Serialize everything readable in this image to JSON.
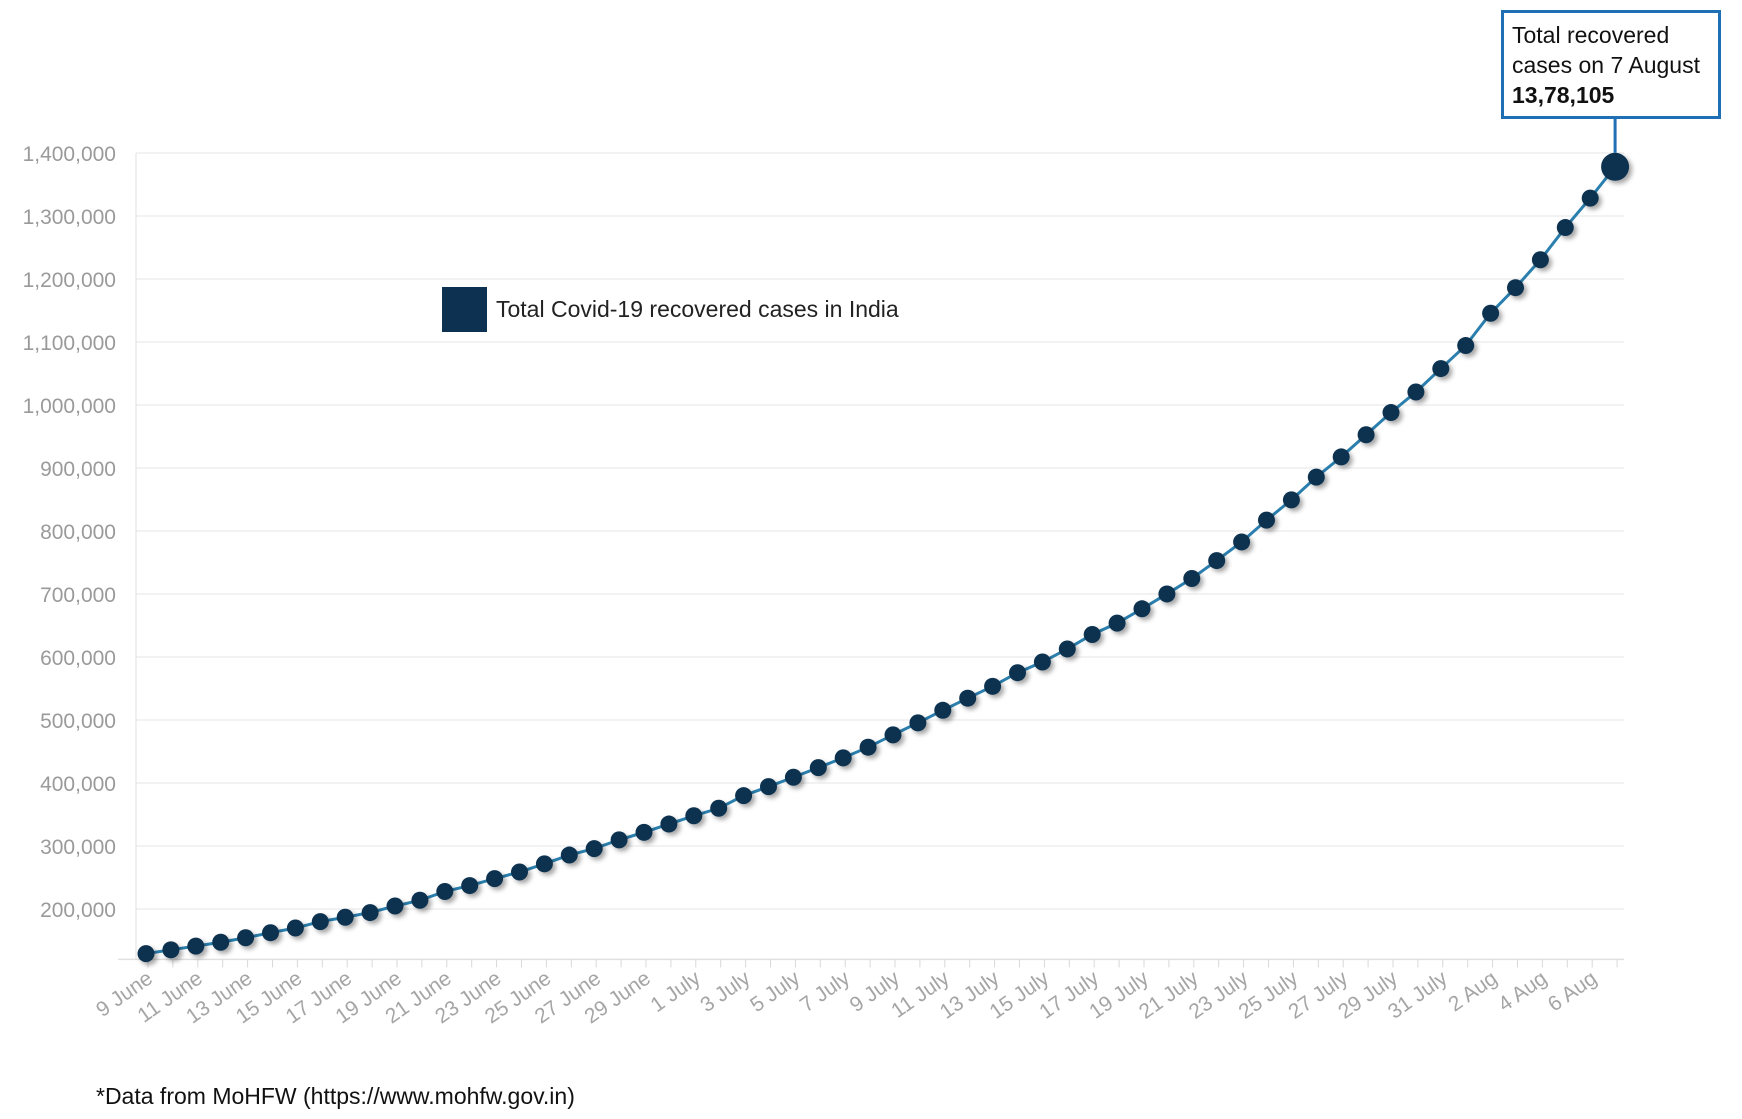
{
  "chart_data": {
    "type": "line",
    "x": [
      "9 June",
      "10 June",
      "11 June",
      "12 June",
      "13 June",
      "14 June",
      "15 June",
      "16 June",
      "17 June",
      "18 June",
      "19 June",
      "20 June",
      "21 June",
      "22 June",
      "23 June",
      "24 June",
      "25 June",
      "26 June",
      "27 June",
      "28 June",
      "29 June",
      "30 June",
      "1 July",
      "2 July",
      "3 July",
      "4 July",
      "5 July",
      "6 July",
      "7 July",
      "8 July",
      "9 July",
      "10 July",
      "11 July",
      "12 July",
      "13 July",
      "14 July",
      "15 July",
      "16 July",
      "17 July",
      "18 July",
      "19 July",
      "20 July",
      "21 July",
      "22 July",
      "23 July",
      "24 July",
      "25 July",
      "26 July",
      "27 July",
      "28 July",
      "29 July",
      "30 July",
      "31 July",
      "1 Aug",
      "2 Aug",
      "3 Aug",
      "4 Aug",
      "5 Aug",
      "6 Aug",
      "7 Aug"
    ],
    "tick_labels": [
      "9 June",
      "11 June",
      "13 June",
      "15 June",
      "17 June",
      "19 June",
      "21 June",
      "23 June",
      "25 June",
      "27 June",
      "29 June",
      "1 July",
      "3 July",
      "5 July",
      "7 July",
      "9 July",
      "11 July",
      "13 July",
      "15 July",
      "17 July",
      "19 July",
      "21 July",
      "23 July",
      "25 July",
      "27 July",
      "29 July",
      "31 July",
      "2 Aug",
      "4 Aug",
      "6 Aug"
    ],
    "series": [
      {
        "name": "Total Covid-19 recovered cases in India",
        "values": [
          129215,
          135206,
          141029,
          147195,
          154330,
          162379,
          169798,
          180013,
          186935,
          194325,
          204711,
          213831,
          227756,
          237196,
          248190,
          258685,
          271697,
          285637,
          295881,
          309713,
          321723,
          334822,
          347979,
          359860,
          379892,
          394227,
          409083,
          424433,
          439934,
          456831,
          476378,
          495513,
          515386,
          534621,
          553471,
          575072,
          592032,
          612768,
          635757,
          653751,
          676514,
          700087,
          724578,
          753050,
          782606,
          817209,
          849431,
          885577,
          917568,
          952743,
          988029,
          1020582,
          1057805,
          1094374,
          1145629,
          1186203,
          1230509,
          1281660,
          1328336,
          1378105
        ]
      }
    ],
    "ylim": [
      120000,
      1400000
    ],
    "y_ticks": [
      "200,000",
      "300,000",
      "400,000",
      "500,000",
      "600,000",
      "700,000",
      "800,000",
      "900,000",
      "1,000,000",
      "1,100,000",
      "1,200,000",
      "1,300,000",
      "1,400,000"
    ],
    "grid": true,
    "legend_placement": "top-left",
    "annotation": {
      "line1": "Total recovered",
      "line2": "cases on 7 August",
      "value": "13,78,105"
    },
    "colors": {
      "marker": "#0d3150",
      "line": "#2b7fae",
      "callout_border": "#1f6fb5"
    }
  },
  "footnote": "*Data from MoHFW (https://www.mohfw.gov.in)"
}
